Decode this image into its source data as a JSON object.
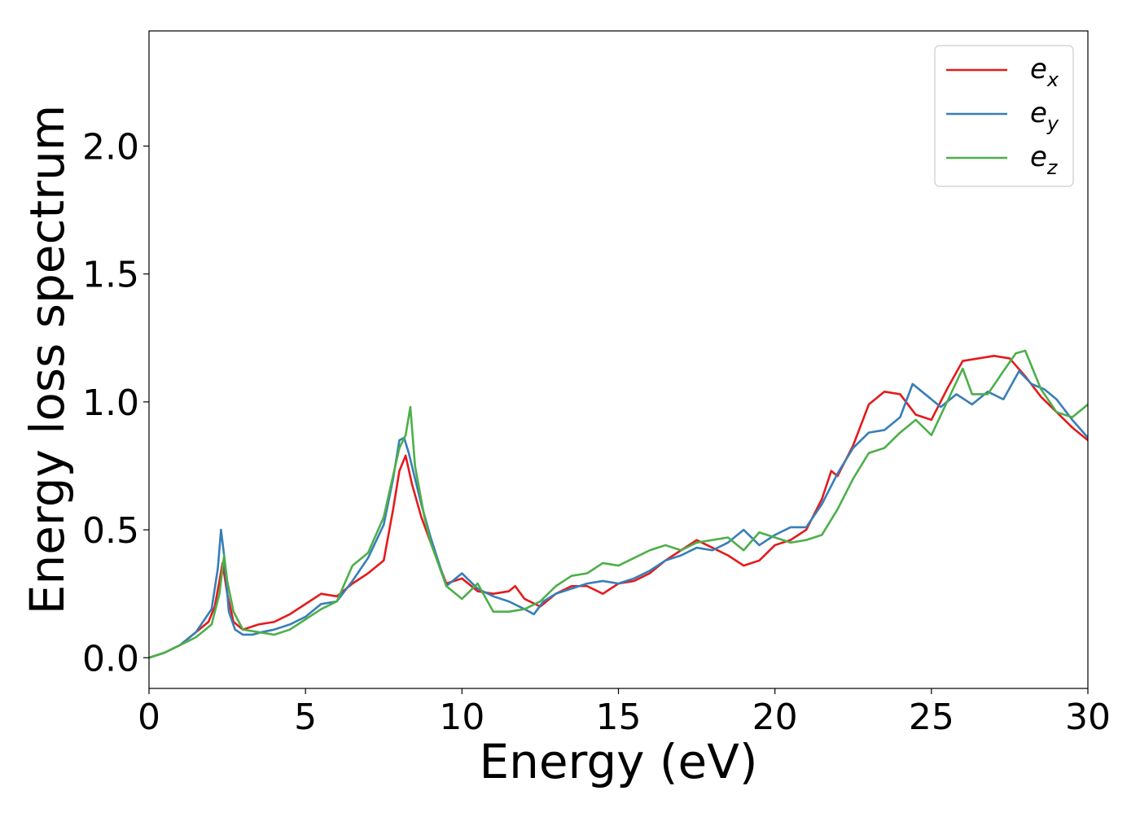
{
  "chart_data": {
    "type": "line",
    "title": "",
    "xlabel": "Energy (eV)",
    "ylabel": "Energy loss spectrum",
    "xlim": [
      0,
      30
    ],
    "ylim": [
      -0.12,
      2.45
    ],
    "xticks": [
      0,
      5,
      10,
      15,
      20,
      25,
      30
    ],
    "xtick_labels": [
      "0",
      "5",
      "10",
      "15",
      "20",
      "25",
      "30"
    ],
    "yticks": [
      0.0,
      0.5,
      1.0,
      1.5,
      2.0
    ],
    "ytick_labels": [
      "0.0",
      "0.5",
      "1.0",
      "1.5",
      "2.0"
    ],
    "grid": false,
    "legend_position": "top-right",
    "series": [
      {
        "name": "e_x",
        "legend_base": "e",
        "legend_sub": "x",
        "color": "#e41a1c",
        "x": [
          0,
          0.5,
          1.0,
          1.5,
          1.9,
          2.1,
          2.25,
          2.35,
          2.5,
          2.7,
          3.0,
          3.5,
          4.0,
          4.5,
          5.0,
          5.5,
          6.0,
          6.5,
          7.0,
          7.5,
          7.8,
          8.0,
          8.2,
          8.4,
          8.7,
          9.0,
          9.5,
          10.0,
          10.5,
          11.0,
          11.5,
          11.7,
          12.0,
          12.5,
          13.0,
          13.5,
          14.0,
          14.5,
          15.0,
          15.5,
          16.0,
          16.5,
          17.0,
          17.5,
          18.0,
          18.5,
          19.0,
          19.5,
          20.0,
          20.5,
          21.0,
          21.5,
          21.8,
          22.0,
          22.5,
          23.0,
          23.5,
          24.0,
          24.5,
          25.0,
          25.5,
          26.0,
          26.5,
          27.0,
          27.5,
          28.0,
          28.5,
          29.0,
          29.5,
          30.0
        ],
        "y": [
          0.0,
          0.02,
          0.05,
          0.1,
          0.14,
          0.2,
          0.3,
          0.37,
          0.25,
          0.14,
          0.11,
          0.13,
          0.14,
          0.17,
          0.21,
          0.25,
          0.24,
          0.29,
          0.33,
          0.38,
          0.58,
          0.73,
          0.79,
          0.68,
          0.55,
          0.45,
          0.29,
          0.31,
          0.26,
          0.25,
          0.26,
          0.28,
          0.23,
          0.2,
          0.25,
          0.28,
          0.28,
          0.25,
          0.29,
          0.3,
          0.33,
          0.38,
          0.42,
          0.46,
          0.43,
          0.4,
          0.36,
          0.38,
          0.44,
          0.46,
          0.5,
          0.62,
          0.73,
          0.71,
          0.83,
          0.99,
          1.04,
          1.03,
          0.95,
          0.93,
          1.05,
          1.16,
          1.17,
          1.18,
          1.17,
          1.1,
          1.02,
          0.96,
          0.9,
          0.85
        ]
      },
      {
        "name": "e_y",
        "legend_base": "e",
        "legend_sub": "y",
        "color": "#377eb8",
        "x": [
          0,
          0.5,
          1.0,
          1.5,
          2.0,
          2.2,
          2.3,
          2.4,
          2.55,
          2.75,
          3.0,
          3.3,
          3.6,
          4.0,
          4.5,
          5.0,
          5.5,
          6.0,
          6.5,
          7.0,
          7.5,
          7.8,
          8.0,
          8.15,
          8.3,
          8.7,
          9.0,
          9.5,
          10.0,
          10.5,
          11.0,
          11.5,
          12.0,
          12.3,
          12.6,
          13.0,
          13.5,
          14.0,
          14.5,
          15.0,
          15.5,
          16.0,
          16.5,
          17.0,
          17.5,
          18.0,
          18.5,
          19.0,
          19.5,
          20.0,
          20.5,
          21.0,
          21.5,
          22.0,
          22.5,
          23.0,
          23.5,
          24.0,
          24.4,
          24.8,
          25.3,
          25.8,
          26.3,
          26.8,
          27.3,
          27.8,
          28.2,
          28.6,
          29.0,
          29.5,
          30.0
        ],
        "y": [
          0.0,
          0.02,
          0.05,
          0.1,
          0.19,
          0.35,
          0.5,
          0.4,
          0.18,
          0.11,
          0.09,
          0.09,
          0.1,
          0.11,
          0.13,
          0.16,
          0.21,
          0.22,
          0.3,
          0.39,
          0.52,
          0.7,
          0.85,
          0.86,
          0.8,
          0.6,
          0.47,
          0.28,
          0.33,
          0.27,
          0.24,
          0.22,
          0.19,
          0.17,
          0.22,
          0.25,
          0.27,
          0.29,
          0.3,
          0.29,
          0.31,
          0.34,
          0.38,
          0.4,
          0.43,
          0.42,
          0.45,
          0.5,
          0.44,
          0.48,
          0.51,
          0.51,
          0.6,
          0.72,
          0.82,
          0.88,
          0.89,
          0.94,
          1.07,
          1.03,
          0.98,
          1.03,
          0.99,
          1.04,
          1.01,
          1.12,
          1.07,
          1.05,
          1.01,
          0.93,
          0.86
        ]
      },
      {
        "name": "e_z",
        "legend_base": "e",
        "legend_sub": "z",
        "color": "#4daf4a",
        "x": [
          0,
          0.5,
          1.0,
          1.5,
          2.0,
          2.25,
          2.4,
          2.5,
          2.7,
          3.0,
          3.5,
          4.0,
          4.5,
          5.0,
          5.5,
          6.0,
          6.5,
          7.0,
          7.5,
          8.0,
          8.2,
          8.35,
          8.5,
          8.8,
          9.0,
          9.5,
          10.0,
          10.5,
          11.0,
          11.5,
          12.0,
          12.5,
          13.0,
          13.5,
          14.0,
          14.5,
          15.0,
          15.5,
          16.0,
          16.5,
          17.0,
          17.5,
          18.0,
          18.5,
          19.0,
          19.5,
          20.0,
          20.5,
          21.0,
          21.5,
          22.0,
          22.5,
          23.0,
          23.5,
          24.0,
          24.5,
          25.0,
          25.5,
          26.0,
          26.3,
          26.8,
          27.3,
          27.7,
          28.0,
          28.5,
          29.0,
          29.5,
          30.0
        ],
        "y": [
          0.0,
          0.02,
          0.05,
          0.08,
          0.13,
          0.25,
          0.4,
          0.3,
          0.18,
          0.11,
          0.1,
          0.09,
          0.11,
          0.15,
          0.19,
          0.22,
          0.36,
          0.41,
          0.55,
          0.82,
          0.87,
          0.98,
          0.75,
          0.55,
          0.45,
          0.28,
          0.23,
          0.29,
          0.18,
          0.18,
          0.19,
          0.22,
          0.28,
          0.32,
          0.33,
          0.37,
          0.36,
          0.39,
          0.42,
          0.44,
          0.42,
          0.45,
          0.46,
          0.47,
          0.42,
          0.49,
          0.47,
          0.45,
          0.46,
          0.48,
          0.58,
          0.7,
          0.8,
          0.82,
          0.88,
          0.93,
          0.87,
          1.0,
          1.13,
          1.03,
          1.03,
          1.12,
          1.19,
          1.2,
          1.05,
          0.96,
          0.94,
          0.99
        ]
      }
    ]
  }
}
